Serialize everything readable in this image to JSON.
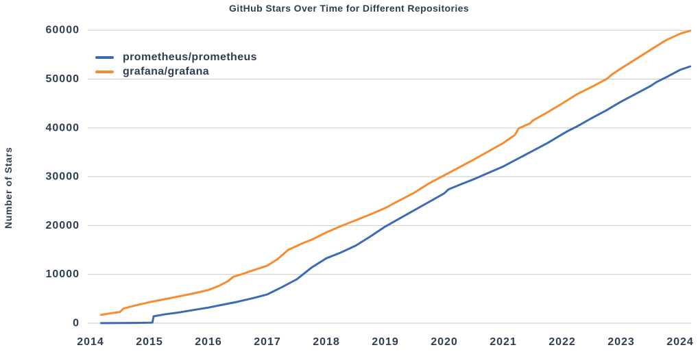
{
  "colors": {
    "text": "#2d3e52",
    "grid": "#c9c9c9",
    "prometheus_line": "#3a6cb4",
    "grafana_line": "#f78b2e"
  },
  "chart_data": {
    "type": "line",
    "title": "GitHub Stars Over Time for Different Repositories",
    "xlabel": "",
    "ylabel": "Number of Stars",
    "x_ticks": [
      2014,
      2015,
      2016,
      2017,
      2018,
      2019,
      2020,
      2021,
      2022,
      2023,
      2024
    ],
    "y_ticks": [
      0,
      10000,
      20000,
      30000,
      40000,
      50000,
      60000
    ],
    "ylim": [
      0,
      60000
    ],
    "xlim": [
      2014,
      2024.2
    ],
    "grid": "horizontal-only",
    "legend_position": "upper-left-inside",
    "series": [
      {
        "name": "prometheus/prometheus",
        "color": "#3a6cb4",
        "points": [
          [
            2014.18,
            10
          ],
          [
            2014.5,
            30
          ],
          [
            2014.75,
            60
          ],
          [
            2015.0,
            100
          ],
          [
            2015.05,
            130
          ],
          [
            2015.07,
            1400
          ],
          [
            2015.25,
            1800
          ],
          [
            2015.5,
            2200
          ],
          [
            2015.75,
            2700
          ],
          [
            2016.0,
            3200
          ],
          [
            2016.25,
            3800
          ],
          [
            2016.5,
            4400
          ],
          [
            2016.75,
            5100
          ],
          [
            2017.0,
            5900
          ],
          [
            2017.25,
            7400
          ],
          [
            2017.5,
            9000
          ],
          [
            2017.75,
            11400
          ],
          [
            2018.0,
            13300
          ],
          [
            2018.25,
            14500
          ],
          [
            2018.5,
            15900
          ],
          [
            2018.75,
            17800
          ],
          [
            2019.0,
            19800
          ],
          [
            2019.25,
            21500
          ],
          [
            2019.5,
            23200
          ],
          [
            2019.75,
            24900
          ],
          [
            2020.0,
            26600
          ],
          [
            2020.07,
            27400
          ],
          [
            2020.25,
            28300
          ],
          [
            2020.5,
            29500
          ],
          [
            2020.75,
            30800
          ],
          [
            2021.0,
            32100
          ],
          [
            2021.25,
            33700
          ],
          [
            2021.5,
            35300
          ],
          [
            2021.75,
            36900
          ],
          [
            2022.0,
            38700
          ],
          [
            2022.1,
            39400
          ],
          [
            2022.25,
            40300
          ],
          [
            2022.5,
            42000
          ],
          [
            2022.75,
            43600
          ],
          [
            2022.9,
            44700
          ],
          [
            2023.0,
            45400
          ],
          [
            2023.25,
            47000
          ],
          [
            2023.5,
            48600
          ],
          [
            2023.6,
            49400
          ],
          [
            2023.75,
            50300
          ],
          [
            2024.0,
            51900
          ],
          [
            2024.17,
            52600
          ]
        ]
      },
      {
        "name": "grafana/grafana",
        "color": "#f78b2e",
        "points": [
          [
            2014.18,
            1700
          ],
          [
            2014.33,
            2000
          ],
          [
            2014.5,
            2300
          ],
          [
            2014.56,
            3000
          ],
          [
            2014.75,
            3600
          ],
          [
            2015.0,
            4300
          ],
          [
            2015.25,
            4900
          ],
          [
            2015.5,
            5500
          ],
          [
            2015.75,
            6100
          ],
          [
            2016.0,
            6800
          ],
          [
            2016.17,
            7600
          ],
          [
            2016.33,
            8600
          ],
          [
            2016.42,
            9500
          ],
          [
            2016.58,
            10100
          ],
          [
            2016.75,
            10800
          ],
          [
            2017.0,
            11800
          ],
          [
            2017.17,
            13100
          ],
          [
            2017.35,
            15000
          ],
          [
            2017.6,
            16400
          ],
          [
            2017.75,
            17100
          ],
          [
            2018.0,
            18600
          ],
          [
            2018.25,
            19900
          ],
          [
            2018.5,
            21100
          ],
          [
            2018.75,
            22300
          ],
          [
            2019.0,
            23600
          ],
          [
            2019.25,
            25200
          ],
          [
            2019.5,
            26800
          ],
          [
            2019.75,
            28700
          ],
          [
            2020.0,
            30300
          ],
          [
            2020.25,
            31900
          ],
          [
            2020.5,
            33500
          ],
          [
            2020.75,
            35200
          ],
          [
            2021.0,
            36900
          ],
          [
            2021.2,
            38600
          ],
          [
            2021.26,
            39900
          ],
          [
            2021.45,
            40900
          ],
          [
            2021.5,
            41500
          ],
          [
            2021.75,
            43200
          ],
          [
            2022.0,
            45000
          ],
          [
            2022.25,
            46900
          ],
          [
            2022.5,
            48400
          ],
          [
            2022.75,
            50000
          ],
          [
            2022.85,
            51000
          ],
          [
            2023.0,
            52200
          ],
          [
            2023.25,
            54100
          ],
          [
            2023.5,
            56000
          ],
          [
            2023.75,
            57900
          ],
          [
            2024.0,
            59300
          ],
          [
            2024.17,
            59900
          ]
        ]
      }
    ]
  }
}
